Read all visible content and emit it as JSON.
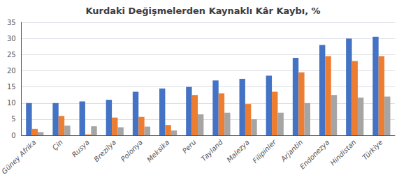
{
  "chart_data": {
    "type": "bar",
    "title": "Kurdaki Değişmelerden Kaynaklı Kâr Kaybı, %",
    "categories": [
      "Güney Afrika",
      "Çin",
      "Rusya",
      "Brezilya",
      "Polonya",
      "Meksika",
      "Peru",
      "Tayland",
      "Malezya",
      "Filipinler",
      "Arjantin",
      "Endonezya",
      "Hindistan",
      "Türkiye"
    ],
    "series": [
      {
        "color": "#4472C4",
        "values": [
          10,
          10,
          10.5,
          11,
          13.5,
          14.5,
          15,
          17,
          17.5,
          18.5,
          24,
          28,
          30,
          30.5
        ]
      },
      {
        "color": "#ED7D31",
        "values": [
          2,
          6,
          0.3,
          5.5,
          5.7,
          3.2,
          12.5,
          13,
          9.7,
          13.5,
          19.5,
          24.5,
          23,
          24.5
        ]
      },
      {
        "color": "#A5A5A5",
        "values": [
          1,
          3,
          2.8,
          2.5,
          2.7,
          1.5,
          6.5,
          7,
          5,
          7,
          10,
          12.5,
          11.7,
          12
        ]
      }
    ],
    "ylim": [
      0,
      35
    ],
    "yticks": [
      0,
      5,
      10,
      15,
      20,
      25,
      30,
      35
    ],
    "grid": true
  }
}
